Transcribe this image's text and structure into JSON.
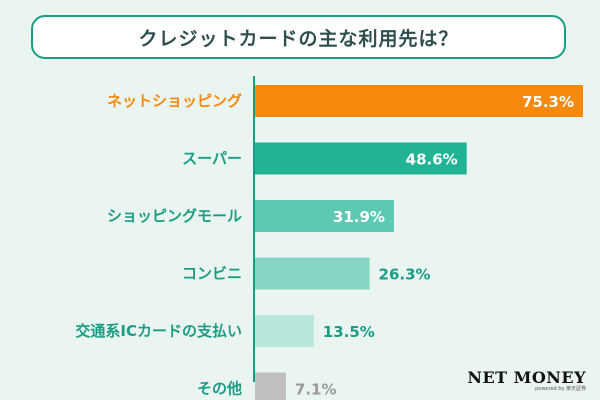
{
  "title": "クレジットカードの主な利用先は？",
  "brand": {
    "name": "NET MONEY",
    "sub": "powered by 楽天証券"
  },
  "colors": {
    "axis": "#1a9e83",
    "bars": [
      "#f7890f",
      "#22b294",
      "#5ec9b2",
      "#86d6c4",
      "#b9e6dc",
      "#bfbfbf"
    ],
    "labels": [
      "#f7890f",
      "#1a9e83",
      "#1a9e83",
      "#1a9e83",
      "#1a9e83",
      "#1a9e83"
    ],
    "value_inside": "#ffffff",
    "value_outside": [
      "#1a9e83",
      "#999999"
    ]
  },
  "chart_data": {
    "type": "bar",
    "orientation": "horizontal",
    "title": "クレジットカードの主な利用先は？",
    "categories": [
      "ネットショッピング",
      "スーパー",
      "ショッピングモール",
      "コンビニ",
      "交通系ICカードの支払い",
      "その他"
    ],
    "values": [
      75.3,
      48.6,
      31.9,
      26.3,
      13.5,
      7.1
    ],
    "value_labels": [
      "75.3%",
      "48.6%",
      "31.9%",
      "26.3%",
      "13.5%",
      "7.1%"
    ],
    "xlim": [
      0,
      75.3
    ],
    "grid": false,
    "legend": "none"
  }
}
